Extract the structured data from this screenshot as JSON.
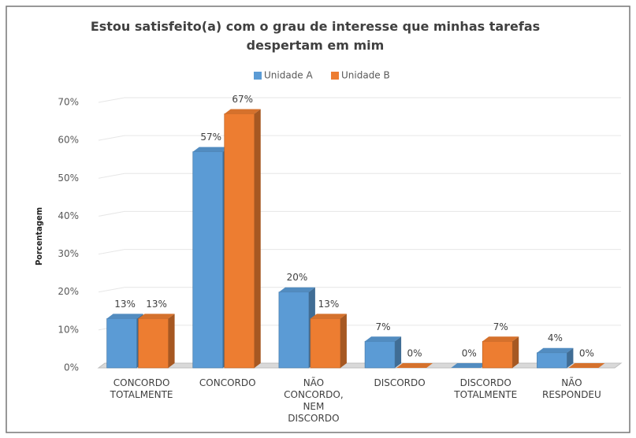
{
  "chart_data": {
    "type": "bar3d",
    "title": "Estou satisfeito(a) com o grau de interesse que minhas tarefas despertam em mim",
    "y_label": "Porcentagem",
    "categories": [
      "CONCORDO\nTOTALMENTE",
      "CONCORDO",
      "NÃO\nCONCORDO,\nNEM\nDISCORDO",
      "DISCORDO",
      "DISCORDO\nTOTALMENTE",
      "NÃO\nRESPONDEU"
    ],
    "series": [
      {
        "name": "Unidade A",
        "color": "#5b9bd5",
        "values": [
          13,
          57,
          20,
          7,
          0,
          4
        ],
        "value_labels": [
          "13%",
          "57%",
          "20%",
          "7%",
          "0%",
          "4%"
        ]
      },
      {
        "name": "Unidade B",
        "color": "#ed7d31",
        "values": [
          13,
          67,
          13,
          0,
          7,
          0
        ],
        "value_labels": [
          "13%",
          "67%",
          "13%",
          "0%",
          "7%",
          "0%"
        ]
      }
    ],
    "ylim": [
      0,
      70
    ],
    "yticks": [
      {
        "value": 0,
        "label": "0%"
      },
      {
        "value": 10,
        "label": "10%"
      },
      {
        "value": 20,
        "label": "20%"
      },
      {
        "value": 30,
        "label": "30%"
      },
      {
        "value": 40,
        "label": "40%"
      },
      {
        "value": 50,
        "label": "50%"
      },
      {
        "value": 60,
        "label": "60%"
      },
      {
        "value": 70,
        "label": "70%"
      }
    ],
    "grid": true,
    "legend": "top"
  }
}
